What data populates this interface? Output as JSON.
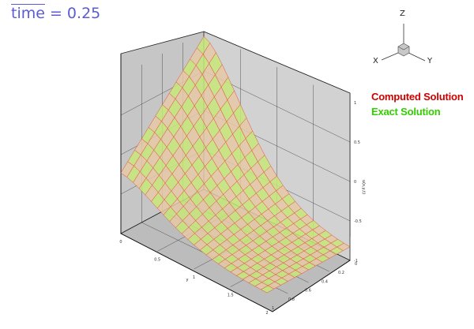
{
  "time_label": {
    "word": "time",
    "equals": " = 0.25"
  },
  "legend": [
    {
      "name": "Computed Solution",
      "color": "#cc0000"
    },
    {
      "name": "Exact Solution",
      "color": "#33cc00"
    }
  ],
  "triad": {
    "z": "Z",
    "x": "X",
    "y": "Y"
  },
  "chart_data": {
    "type": "surface",
    "title": "",
    "zlabel": "u(x,y,t)",
    "xlabel": "y",
    "x_ticks": [
      "0",
      "0.5",
      "1",
      "1.5",
      "2"
    ],
    "y_ticks": [
      "1",
      "0.8",
      "0.6",
      "0.4",
      "0.2",
      "0"
    ],
    "z_ticks": [
      "1",
      "0.5",
      "0",
      "-0.5",
      "-1"
    ],
    "x_range": [
      0,
      2
    ],
    "y_range": [
      0,
      1
    ],
    "z_range": [
      -1,
      1
    ],
    "series": [
      {
        "name": "Computed Solution",
        "color": "#dd2222"
      },
      {
        "name": "Exact Solution",
        "color": "#a6e61e"
      }
    ],
    "surface_description_values": {
      "peak": {
        "x": 0,
        "y": 1,
        "u": 1.0
      },
      "u_at_x_2": 0.0
    }
  }
}
